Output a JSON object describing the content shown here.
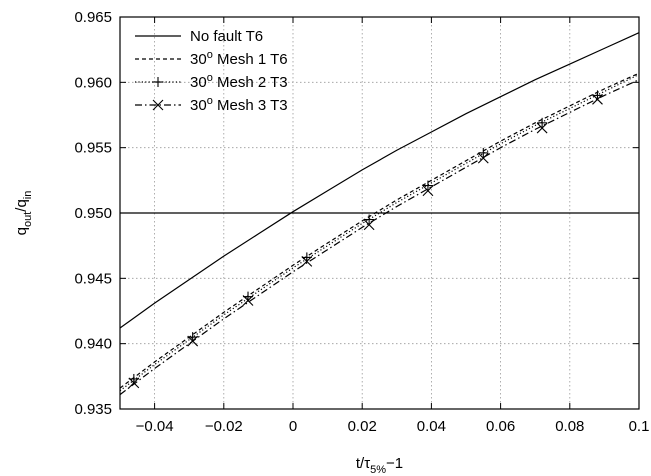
{
  "chart_data": {
    "type": "line",
    "xlabel": {
      "main": "t/τ",
      "sub": "5%",
      "tail": "−1"
    },
    "ylabel": {
      "main": "q",
      "sub1": "out",
      "sep": "/q",
      "sub2": "in"
    },
    "xlim": [
      -0.05,
      0.1
    ],
    "ylim": [
      0.935,
      0.965
    ],
    "xticks": [
      {
        "value": -0.04,
        "label": "−0.04"
      },
      {
        "value": -0.02,
        "label": "−0.02"
      },
      {
        "value": 0,
        "label": "0"
      },
      {
        "value": 0.02,
        "label": "0.02"
      },
      {
        "value": 0.04,
        "label": "0.04"
      },
      {
        "value": 0.06,
        "label": "0.06"
      },
      {
        "value": 0.08,
        "label": "0.08"
      },
      {
        "value": 0.1,
        "label": "0.1"
      }
    ],
    "yticks": [
      {
        "value": 0.935,
        "label": "0.935"
      },
      {
        "value": 0.94,
        "label": "0.940"
      },
      {
        "value": 0.945,
        "label": "0.945"
      },
      {
        "value": 0.95,
        "label": "0.950"
      },
      {
        "value": 0.955,
        "label": "0.955"
      },
      {
        "value": 0.96,
        "label": "0.960"
      },
      {
        "value": 0.965,
        "label": "0.965"
      }
    ],
    "grid": true,
    "reference_line": 0.95,
    "legend_position": "top-left",
    "series": [
      {
        "name": "No fault T6",
        "name_parts": [
          "No fault T6"
        ],
        "style": "solid",
        "marker": "none",
        "x": [
          -0.05,
          -0.04,
          -0.03,
          -0.02,
          -0.01,
          0,
          0.01,
          0.02,
          0.03,
          0.04,
          0.05,
          0.06,
          0.07,
          0.08,
          0.09,
          0.1
        ],
        "y": [
          0.9412,
          0.9431,
          0.9449,
          0.9467,
          0.9484,
          0.9501,
          0.9517,
          0.9533,
          0.9548,
          0.9562,
          0.9576,
          0.9589,
          0.9602,
          0.9614,
          0.9626,
          0.9638
        ]
      },
      {
        "name": "30° Mesh 1 T6",
        "name_parts": [
          "30",
          "o",
          " Mesh 1 T6"
        ],
        "style": "dashed",
        "marker": "none",
        "x": [
          -0.05,
          -0.04,
          -0.03,
          -0.02,
          -0.01,
          0,
          0.01,
          0.02,
          0.03,
          0.04,
          0.05,
          0.06,
          0.07,
          0.08,
          0.09,
          0.1
        ],
        "y": [
          0.9366,
          0.9386,
          0.9405,
          0.9424,
          0.9442,
          0.946,
          0.9477,
          0.9494,
          0.951,
          0.9525,
          0.954,
          0.9555,
          0.9569,
          0.9582,
          0.9595,
          0.9607
        ]
      },
      {
        "name": "30° Mesh 2 T3",
        "name_parts": [
          "30",
          "o",
          " Mesh 2 T3"
        ],
        "style": "dotted",
        "marker": "plus",
        "x": [
          -0.05,
          -0.04,
          -0.03,
          -0.02,
          -0.01,
          0,
          0.01,
          0.02,
          0.03,
          0.04,
          0.05,
          0.06,
          0.07,
          0.08,
          0.09,
          0.1
        ],
        "y": [
          0.9364,
          0.9384,
          0.9403,
          0.9422,
          0.944,
          0.9458,
          0.9475,
          0.9492,
          0.9508,
          0.9523,
          0.9538,
          0.9553,
          0.9567,
          0.958,
          0.9593,
          0.9606
        ],
        "marker_x": [
          -0.046,
          -0.029,
          -0.013,
          0.004,
          0.022,
          0.039,
          0.055,
          0.072,
          0.088
        ],
        "marker_y": [
          0.9373,
          0.9405,
          0.9436,
          0.9466,
          0.9495,
          0.9521,
          0.9546,
          0.9569,
          0.959
        ]
      },
      {
        "name": "30° Mesh 3 T3",
        "name_parts": [
          "30",
          "o",
          " Mesh 3 T3"
        ],
        "style": "dashdot",
        "marker": "x",
        "x": [
          -0.05,
          -0.04,
          -0.03,
          -0.02,
          -0.01,
          0,
          0.01,
          0.02,
          0.03,
          0.04,
          0.05,
          0.06,
          0.07,
          0.08,
          0.09,
          0.1
        ],
        "y": [
          0.9361,
          0.9381,
          0.94,
          0.9419,
          0.9437,
          0.9455,
          0.9472,
          0.9489,
          0.9505,
          0.952,
          0.9535,
          0.955,
          0.9564,
          0.9577,
          0.959,
          0.9602
        ],
        "marker_x": [
          -0.046,
          -0.029,
          -0.013,
          0.004,
          0.022,
          0.039,
          0.055,
          0.072,
          0.088
        ],
        "marker_y": [
          0.937,
          0.9402,
          0.9433,
          0.9463,
          0.9491,
          0.9517,
          0.9542,
          0.9565,
          0.9587
        ]
      }
    ]
  }
}
